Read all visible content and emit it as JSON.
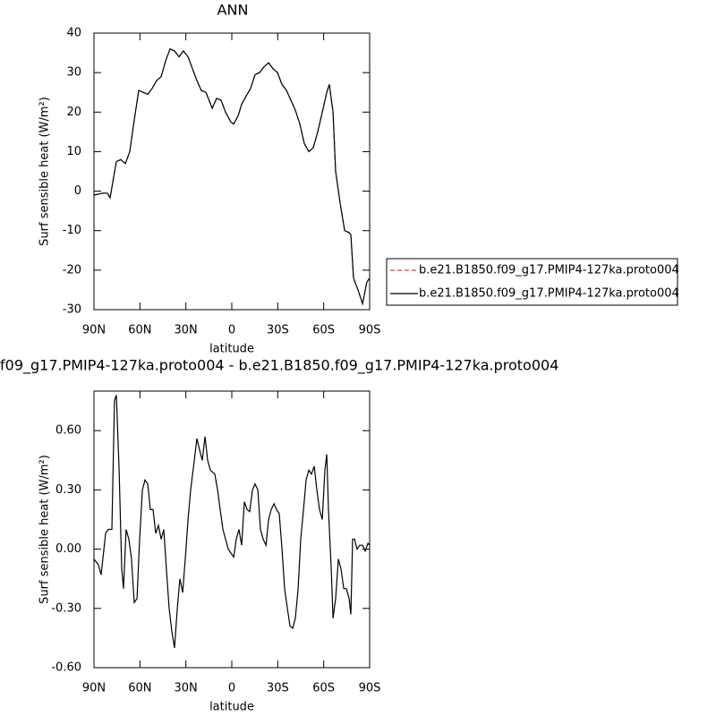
{
  "chart_data": [
    {
      "type": "line",
      "title": "ANN",
      "x_label": "latitude",
      "y_label": "Surf sensible heat (W/m²)",
      "xlim": [
        90,
        -90
      ],
      "ylim": [
        -30,
        40
      ],
      "xticks": [
        {
          "value": 90,
          "label": "90N"
        },
        {
          "value": 60,
          "label": "60N"
        },
        {
          "value": 30,
          "label": "30N"
        },
        0,
        {
          "value": -30,
          "label": "30S"
        },
        {
          "value": -60,
          "label": "60S"
        },
        {
          "value": -90,
          "label": "90S"
        }
      ],
      "yticks": [
        -30,
        -20,
        -10,
        0,
        10,
        20,
        30,
        40
      ],
      "legend": "outside-right",
      "x": [
        90,
        84.2,
        81.2,
        79.5,
        75.4,
        72.5,
        69.5,
        66.6,
        63.7,
        60.8,
        57.9,
        54.9,
        52.0,
        49.1,
        46.1,
        43.2,
        40.3,
        37.4,
        34.5,
        31.6,
        28.6,
        25.7,
        22.8,
        19.9,
        16.9,
        12.8,
        9.9,
        7.0,
        4.1,
        0.6,
        -1.2,
        -4.1,
        -6.4,
        -9.3,
        -12.3,
        -15.2,
        -18.1,
        -21.1,
        -24.0,
        -26.9,
        -29.8,
        -32.8,
        -35.7,
        -38.6,
        -41.5,
        -44.4,
        -47.4,
        -50.3,
        -53.2,
        -56.1,
        -59.1,
        -62.0,
        -63.7,
        -66.1,
        -67.8,
        -70.7,
        -73.7,
        -76.6,
        -77.7,
        -79.5,
        -82.4,
        -85.4,
        -88.2,
        -90
      ],
      "series": [
        {
          "name": "b.e21.B1850.f09_g17.PMIP4-127ka.proto004",
          "color": "#e04040",
          "dash": true,
          "values": [
            -1,
            -0.5,
            -0.5,
            -1.7,
            7.5,
            8,
            7,
            10,
            18,
            25.5,
            25,
            24.5,
            26,
            28,
            29,
            33,
            36,
            35.5,
            34,
            35.5,
            34,
            31,
            28,
            25.5,
            25,
            21,
            23.5,
            23,
            20,
            17.5,
            17,
            19,
            22,
            24,
            26,
            29.5,
            30,
            31.5,
            32.5,
            31,
            30,
            27,
            25.5,
            23,
            20.5,
            17,
            12,
            10,
            11,
            15,
            20,
            25,
            27,
            20,
            5,
            -3,
            -10,
            -10.5,
            -11,
            -22,
            -25,
            -28.5,
            -23,
            -22
          ]
        },
        {
          "name": "b.e21.B1850.f09_g17.PMIP4-127ka.proto004",
          "color": "#000000",
          "dash": false,
          "values": [
            -1,
            -0.5,
            -0.5,
            -1.7,
            7.5,
            8,
            7,
            10,
            18,
            25.5,
            25,
            24.5,
            26,
            28,
            29,
            33,
            36,
            35.5,
            34,
            35.5,
            34,
            31,
            28,
            25.5,
            25,
            21,
            23.5,
            23,
            20,
            17.5,
            17,
            19,
            22,
            24,
            26,
            29.5,
            30,
            31.5,
            32.5,
            31,
            30,
            27,
            25.5,
            23,
            20.5,
            17,
            12,
            10,
            11,
            15,
            20,
            25,
            27,
            20,
            5,
            -3,
            -10,
            -10.5,
            -11,
            -22,
            -25,
            -28.5,
            -23,
            -22
          ]
        }
      ]
    },
    {
      "type": "line",
      "title": "f09_g17.PMIP4-127ka.proto004 - b.e21.B1850.f09_g17.PMIP4-127ka.proto004",
      "x_label": "latitude",
      "y_label": "Surf sensible heat (W/m²)",
      "xlim": [
        90,
        -90
      ],
      "ylim": [
        -0.6,
        0.8
      ],
      "xticks": [
        {
          "value": 90,
          "label": "90N"
        },
        {
          "value": 60,
          "label": "60N"
        },
        {
          "value": 30,
          "label": "30N"
        },
        0,
        {
          "value": -30,
          "label": "30S"
        },
        {
          "value": -60,
          "label": "60S"
        },
        {
          "value": -90,
          "label": "90S"
        }
      ],
      "yticks": [
        {
          "value": -0.6,
          "label": "-0.60"
        },
        {
          "value": -0.3,
          "label": "-0.30"
        },
        {
          "value": 0,
          "label": "0.00"
        },
        {
          "value": 0.3,
          "label": "0.30"
        },
        {
          "value": 0.6,
          "label": "0.60"
        }
      ],
      "color": "#000000",
      "x": [
        90,
        87.1,
        85.3,
        82.4,
        80.6,
        78.3,
        76.6,
        75.4,
        73.6,
        71.9,
        70.7,
        69.0,
        67.2,
        65.5,
        63.7,
        61.9,
        60.2,
        58.4,
        56.7,
        54.9,
        53.2,
        51.4,
        49.7,
        47.9,
        46.1,
        44.4,
        42.7,
        40.9,
        39.1,
        37.4,
        35.6,
        33.9,
        32.1,
        30.4,
        28.6,
        26.9,
        24.5,
        22.8,
        21.0,
        19.3,
        17.5,
        15.8,
        14.0,
        11.1,
        9.3,
        7.6,
        5.8,
        4.1,
        2.3,
        0.6,
        -1.2,
        -2.9,
        -4.7,
        -6.4,
        -8.2,
        -10.0,
        -11.7,
        -13.5,
        -15.2,
        -17.0,
        -18.7,
        -20.5,
        -22.3,
        -24.0,
        -25.7,
        -27.5,
        -29.2,
        -31.0,
        -32.8,
        -34.5,
        -36.3,
        -38.0,
        -39.8,
        -41.5,
        -43.3,
        -45.0,
        -46.8,
        -48.5,
        -50.3,
        -52.0,
        -53.8,
        -55.5,
        -57.3,
        -59.1,
        -60.8,
        -62.0,
        -63.1,
        -64.9,
        -66.1,
        -67.8,
        -69.6,
        -71.3,
        -73.1,
        -74.8,
        -76.6,
        -77.7,
        -78.9,
        -80.1,
        -81.8,
        -83.6,
        -85.4,
        -87.1,
        -88.9,
        -90
      ],
      "values": [
        -0.05,
        -0.08,
        -0.13,
        0.08,
        0.1,
        0.1,
        0.75,
        0.78,
        0.4,
        -0.1,
        -0.2,
        0.1,
        0.05,
        -0.05,
        -0.27,
        -0.25,
        0.05,
        0.3,
        0.35,
        0.33,
        0.2,
        0.2,
        0.08,
        0.12,
        0.05,
        0.1,
        -0.1,
        -0.3,
        -0.42,
        -0.5,
        -0.3,
        -0.15,
        -0.22,
        -0.05,
        0.15,
        0.3,
        0.45,
        0.56,
        0.5,
        0.45,
        0.57,
        0.45,
        0.4,
        0.38,
        0.3,
        0.2,
        0.1,
        0.05,
        0.0,
        -0.02,
        -0.04,
        0.05,
        0.1,
        0.02,
        0.24,
        0.2,
        0.19,
        0.3,
        0.33,
        0.3,
        0.1,
        0.05,
        0.02,
        0.15,
        0.2,
        0.23,
        0.2,
        0.18,
        0.0,
        -0.2,
        -0.3,
        -0.39,
        -0.4,
        -0.35,
        -0.2,
        0.05,
        0.2,
        0.35,
        0.4,
        0.38,
        0.42,
        0.3,
        0.2,
        0.15,
        0.4,
        0.48,
        0.2,
        -0.1,
        -0.35,
        -0.25,
        -0.05,
        -0.1,
        -0.2,
        -0.2,
        -0.25,
        -0.33,
        0.05,
        0.05,
        0.0,
        0.02,
        0.02,
        -0.01,
        0.03,
        0.02
      ]
    }
  ]
}
